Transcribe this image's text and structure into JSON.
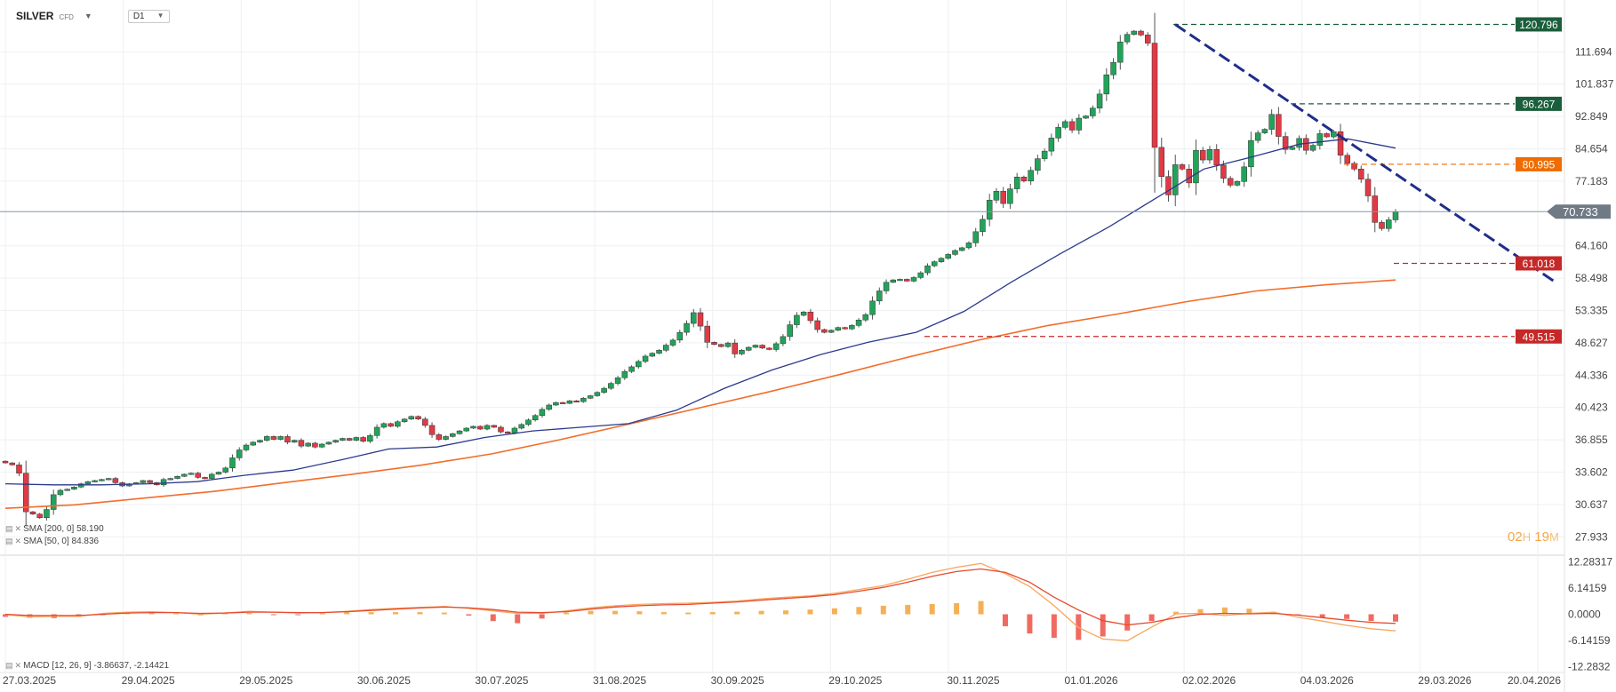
{
  "header": {
    "symbol": "SILVER",
    "symbol_sub": "CFD",
    "timeframe": "D1"
  },
  "countdown": {
    "hours": "02",
    "h_unit": "H",
    "minutes": "19",
    "m_unit": "M"
  },
  "indicators": {
    "sma200": "SMA [200, 0] 58.190",
    "sma50": "SMA [50, 0] 84.836",
    "macd": "MACD [12, 26, 9] -3.86637, -2.14421"
  },
  "chart_data": [
    {
      "type": "candlestick",
      "title": "SILVER CFD D1",
      "x_tick_labels": [
        "27.03.2025",
        "29.04.2025",
        "29.05.2025",
        "30.06.2025",
        "30.07.2025",
        "31.08.2025",
        "30.09.2025",
        "29.10.2025",
        "30.11.2025",
        "01.01.2026",
        "02.02.2026",
        "04.03.2026",
        "29.03.2026",
        "20.04.2026"
      ],
      "y_tick_labels": [
        "111.694",
        "101.837",
        "92.849",
        "84.654",
        "77.183",
        "64.160",
        "58.498",
        "53.335",
        "48.627",
        "44.336",
        "40.423",
        "36.855",
        "33.602",
        "30.637",
        "27.933"
      ],
      "ylim": [
        26.5,
        125
      ],
      "price_labels": [
        {
          "value": 120.796,
          "text": "120.796",
          "color": "#1b5e3b",
          "style": "dashed"
        },
        {
          "value": 96.267,
          "text": "96.267",
          "color": "#1b5e3b",
          "style": "dashed"
        },
        {
          "value": 80.995,
          "text": "80.995",
          "color": "#ef6c00",
          "style": "dashed"
        },
        {
          "value": 70.733,
          "text": "70.733",
          "color": "#6f7a85",
          "style": "current"
        },
        {
          "value": 61.018,
          "text": "61.018",
          "color": "#c62828",
          "style": "dashed"
        },
        {
          "value": 49.515,
          "text": "49.515",
          "color": "#c62828",
          "style": "dashed"
        }
      ],
      "trendline": {
        "from": 120.796,
        "to": 58.0,
        "color": "#1f2e8a"
      },
      "series_close": [
        34.5,
        34.3,
        33.5,
        30.0,
        29.8,
        29.5,
        30.2,
        31.5,
        31.9,
        32.0,
        32.2,
        32.5,
        32.7,
        32.8,
        32.9,
        33.0,
        32.6,
        32.3,
        32.5,
        32.6,
        32.8,
        32.6,
        32.4,
        32.9,
        33.0,
        33.2,
        33.4,
        33.5,
        33.1,
        33.0,
        33.4,
        33.6,
        34.0,
        35.0,
        35.8,
        36.3,
        36.6,
        36.8,
        37.2,
        36.9,
        37.2,
        36.6,
        36.8,
        36.2,
        36.5,
        36.1,
        36.4,
        36.6,
        36.8,
        37.0,
        36.8,
        37.1,
        36.7,
        37.3,
        38.2,
        38.6,
        38.3,
        38.8,
        39.1,
        39.4,
        39.1,
        38.4,
        37.4,
        36.9,
        37.2,
        37.5,
        37.8,
        38.1,
        38.3,
        38.0,
        38.4,
        38.2,
        37.7,
        37.6,
        38.1,
        38.5,
        39.0,
        39.5,
        40.2,
        40.7,
        41.0,
        40.9,
        41.2,
        41.1,
        41.5,
        41.8,
        42.2,
        42.7,
        43.3,
        44.0,
        44.8,
        45.4,
        46.1,
        46.8,
        47.2,
        47.6,
        48.3,
        49.0,
        50.1,
        51.4,
        53.0,
        51.0,
        48.7,
        48.4,
        48.1,
        48.6,
        47.1,
        47.6,
        48.0,
        48.3,
        47.9,
        47.7,
        48.5,
        49.5,
        51.2,
        52.6,
        53.1,
        51.8,
        50.5,
        50.1,
        50.4,
        50.8,
        50.6,
        51.1,
        51.9,
        52.7,
        54.8,
        56.4,
        57.8,
        58.2,
        58.3,
        58.0,
        58.6,
        59.4,
        60.6,
        61.3,
        61.9,
        62.6,
        63.3,
        63.8,
        64.7,
        66.8,
        69.2,
        73.1,
        75.0,
        72.4,
        75.5,
        78.1,
        77.2,
        79.6,
        82.3,
        84.1,
        87.3,
        90.0,
        91.5,
        89.3,
        92.4,
        93.0,
        95.1,
        99.0,
        104.6,
        108.4,
        114.9,
        117.4,
        118.5,
        117.2,
        114.5,
        85.0,
        78.2,
        74.2,
        80.9,
        79.9,
        76.8,
        84.3,
        82.0,
        84.5,
        80.8,
        77.8,
        76.3,
        77.1,
        80.4,
        86.7,
        88.6,
        89.5,
        93.4,
        87.7,
        84.5,
        85.0,
        87.2,
        84.3,
        85.5,
        88.4,
        87.6,
        88.9,
        83.1,
        81.2,
        79.9,
        77.6,
        74.0,
        68.6,
        67.4,
        69.1,
        70.7
      ],
      "series": [
        {
          "name": "SMA 200",
          "color": "#f26d2a",
          "values": [
            30.3,
            30.6,
            31.2,
            31.8,
            32.6,
            33.4,
            34.3,
            35.4,
            36.9,
            38.6,
            40.4,
            42.3,
            44.4,
            46.7,
            49.0,
            51.1,
            52.8,
            54.7,
            56.4,
            57.4,
            58.19
          ]
        },
        {
          "name": "SMA 50",
          "color": "#2b3a8c",
          "values": [
            32.5,
            32.4,
            32.4,
            32.5,
            32.7,
            33.3,
            33.8,
            34.8,
            35.9,
            36.1,
            37.1,
            37.8,
            38.2,
            38.6,
            40.1,
            42.7,
            45.0,
            47.0,
            48.7,
            50.1,
            53.2,
            57.9,
            62.7,
            67.6,
            73.5,
            79.9,
            82.7,
            85.8,
            87.1,
            84.836
          ]
        }
      ]
    },
    {
      "type": "macd",
      "title": "MACD [12, 26, 9]",
      "y_tick_labels": [
        "12.28317",
        "6.14159",
        "0.0000",
        "-6.14159",
        "-12.2832"
      ],
      "ylim": [
        -13,
        13
      ],
      "series": [
        {
          "name": "MACD",
          "color": "#f7a55c",
          "values": [
            -0.1,
            -0.6,
            -0.5,
            -0.5,
            0.2,
            0.5,
            0.6,
            0.4,
            0.0,
            0.3,
            0.7,
            0.5,
            0.3,
            0.4,
            0.7,
            1.1,
            1.4,
            1.6,
            1.8,
            1.4,
            0.8,
            0.2,
            0.2,
            0.8,
            1.5,
            2.0,
            2.3,
            2.5,
            2.6,
            2.8,
            3.1,
            3.6,
            4.0,
            4.3,
            4.9,
            5.8,
            6.7,
            8.2,
            9.8,
            11.0,
            11.9,
            9.5,
            6.5,
            2.0,
            -3.1,
            -5.8,
            -6.2,
            -3.0,
            0.1,
            0.2,
            -0.3,
            0.2,
            0.5,
            -0.7,
            -1.6,
            -2.6,
            -3.4,
            -3.87
          ]
        },
        {
          "name": "Signal",
          "color": "#e64a2e",
          "values": [
            0.0,
            -0.3,
            -0.3,
            -0.3,
            0.0,
            0.3,
            0.4,
            0.4,
            0.2,
            0.3,
            0.5,
            0.5,
            0.4,
            0.4,
            0.6,
            0.9,
            1.2,
            1.5,
            1.7,
            1.5,
            1.1,
            0.5,
            0.4,
            0.6,
            1.2,
            1.7,
            2.0,
            2.2,
            2.3,
            2.6,
            2.9,
            3.3,
            3.7,
            4.1,
            4.6,
            5.4,
            6.3,
            7.5,
            8.9,
            10.0,
            10.6,
            9.8,
            7.5,
            4.0,
            1.0,
            -1.5,
            -2.5,
            -1.9,
            -0.8,
            0.0,
            0.2,
            0.1,
            0.2,
            -0.2,
            -0.8,
            -1.4,
            -1.9,
            -2.14
          ]
        },
        {
          "name": "Histogram",
          "color": "#ef6c00",
          "values": [
            -0.6,
            -0.8,
            -0.9,
            -0.6,
            -0.2,
            0.3,
            0.4,
            0.2,
            -0.2,
            0.2,
            0.3,
            -0.1,
            -0.2,
            0.2,
            0.5,
            0.5,
            0.5,
            0.5,
            0.4,
            -0.3,
            -1.6,
            -2.1,
            -1.0,
            0.4,
            0.8,
            0.8,
            0.7,
            0.5,
            0.4,
            0.5,
            0.6,
            0.8,
            0.9,
            1.1,
            1.4,
            1.7,
            2.0,
            2.2,
            2.4,
            2.6,
            3.1,
            -2.8,
            -4.5,
            -5.5,
            -6.0,
            -5.2,
            -3.8,
            -1.6,
            0.6,
            1.2,
            1.6,
            1.3,
            0.6,
            -0.3,
            -0.8,
            -1.1,
            -1.6,
            -1.72
          ]
        }
      ]
    }
  ]
}
